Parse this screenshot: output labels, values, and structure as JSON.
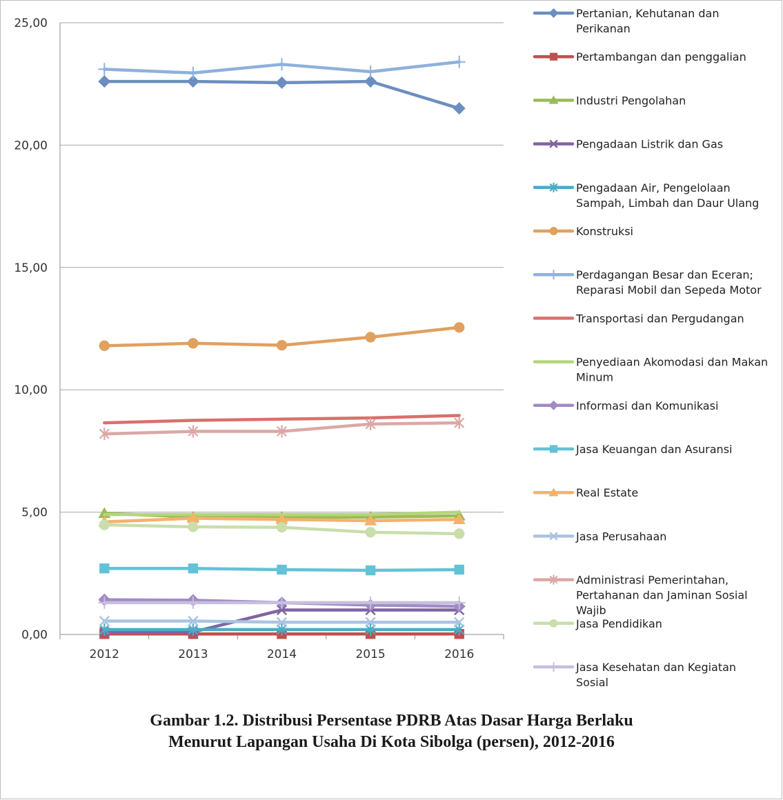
{
  "chart_data": {
    "type": "line",
    "title": "",
    "xlabel": "",
    "ylabel": "",
    "ylim": [
      0,
      25
    ],
    "yticks": [
      "0,00",
      "5,00",
      "10,00",
      "15,00",
      "20,00",
      "25,00"
    ],
    "categories": [
      "2012",
      "2013",
      "2014",
      "2015",
      "2016"
    ],
    "grid": "horizontal",
    "legend_position": "right",
    "series": [
      {
        "name": "Pertanian, Kehutanan dan Perikanan",
        "color": "#6c8ebf",
        "marker": "diamond",
        "values": [
          22.6,
          22.6,
          22.55,
          22.6,
          21.5
        ]
      },
      {
        "name": "Pertambangan dan penggalian",
        "color": "#c0504d",
        "marker": "square",
        "values": [
          0.02,
          0.02,
          0.02,
          0.02,
          0.02
        ]
      },
      {
        "name": "Industri Pengolahan",
        "color": "#9bbb59",
        "marker": "triangle",
        "values": [
          4.95,
          4.8,
          4.8,
          4.8,
          4.85
        ]
      },
      {
        "name": "Pengadaan Listrik dan Gas",
        "color": "#8064a2",
        "marker": "x",
        "values": [
          0.1,
          0.1,
          1.0,
          1.0,
          1.0
        ]
      },
      {
        "name": "Pengadaan Air, Pengelolaan Sampah, Limbah dan Daur Ulang",
        "color": "#4bacc6",
        "marker": "star",
        "values": [
          0.2,
          0.2,
          0.2,
          0.2,
          0.2
        ]
      },
      {
        "name": "Konstruksi",
        "color": "#e0a060",
        "marker": "circle",
        "values": [
          11.8,
          11.9,
          11.82,
          12.15,
          12.55
        ]
      },
      {
        "name": "Perdagangan Besar dan Eceran; Reparasi Mobil dan Sepeda Motor",
        "color": "#8eb1dc",
        "marker": "plus",
        "values": [
          23.1,
          22.95,
          23.3,
          23.0,
          23.4
        ]
      },
      {
        "name": "Transportasi dan Pergudangan",
        "color": "#d9706c",
        "marker": "none",
        "values": [
          8.65,
          8.75,
          8.8,
          8.85,
          8.95
        ]
      },
      {
        "name": "Penyediaan Akomodasi dan Makan Minum",
        "color": "#b4d67a",
        "marker": "none",
        "values": [
          4.9,
          4.9,
          4.9,
          4.9,
          5.0
        ]
      },
      {
        "name": "Informasi dan Komunikasi",
        "color": "#a08bc5",
        "marker": "diamond",
        "values": [
          1.42,
          1.4,
          1.3,
          1.2,
          1.15
        ]
      },
      {
        "name": "Jasa Keuangan dan Asuransi",
        "color": "#63c2d6",
        "marker": "square",
        "values": [
          2.7,
          2.7,
          2.65,
          2.62,
          2.65
        ]
      },
      {
        "name": "Real Estate",
        "color": "#f5b26b",
        "marker": "triangle",
        "values": [
          4.6,
          4.75,
          4.7,
          4.65,
          4.7
        ]
      },
      {
        "name": "Jasa Perusahaan",
        "color": "#aac4e2",
        "marker": "x",
        "values": [
          0.55,
          0.55,
          0.5,
          0.5,
          0.5
        ]
      },
      {
        "name": "Administrasi Pemerintahan, Pertahanan dan Jaminan Sosial Wajib",
        "color": "#dba8a6",
        "marker": "star",
        "values": [
          8.2,
          8.3,
          8.3,
          8.6,
          8.65
        ]
      },
      {
        "name": "Jasa Pendidikan",
        "color": "#c9deab",
        "marker": "circle",
        "values": [
          4.48,
          4.4,
          4.38,
          4.18,
          4.12
        ]
      },
      {
        "name": "Jasa Kesehatan dan Kegiatan Sosial",
        "color": "#c7bfdd",
        "marker": "plus",
        "values": [
          1.3,
          1.3,
          1.3,
          1.3,
          1.3
        ]
      }
    ]
  },
  "caption": {
    "line1": "Gambar 1.2. Distribusi Persentase PDRB Atas Dasar Harga Berlaku",
    "line2": "Menurut Lapangan Usaha Di Kota Sibolga (persen), 2012-2016"
  }
}
